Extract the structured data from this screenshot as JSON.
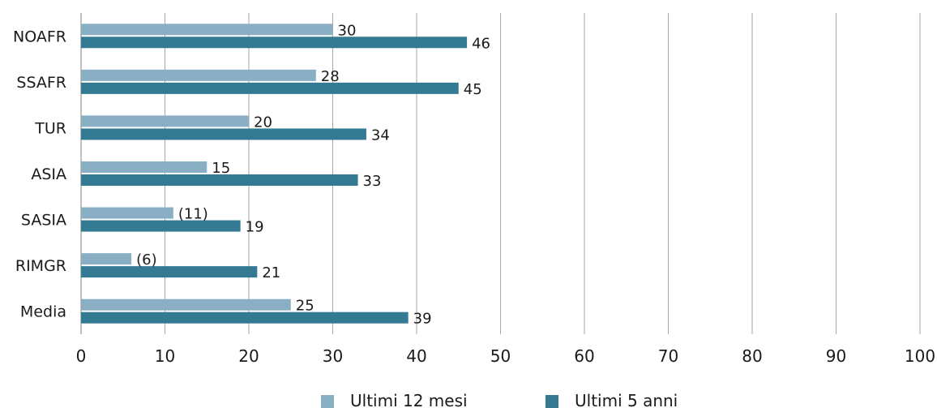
{
  "chart_data": {
    "type": "bar",
    "orientation": "horizontal",
    "categories": [
      "NOAFR",
      "SSAFR",
      "TUR",
      "ASIA",
      "SASIA",
      "RIMGR",
      "Media"
    ],
    "series": [
      {
        "name": "Ultimi 12 mesi",
        "color": "#8aafc4",
        "values": [
          30,
          28,
          20,
          15,
          11,
          6,
          25
        ],
        "labels": [
          "30",
          "28",
          "20",
          "15",
          "(11)",
          "(6)",
          "25"
        ]
      },
      {
        "name": "Ultimi 5 anni",
        "color": "#337a92",
        "values": [
          46,
          45,
          34,
          33,
          19,
          21,
          39
        ],
        "labels": [
          "46",
          "45",
          "34",
          "33",
          "19",
          "21",
          "39"
        ]
      }
    ],
    "xlim": [
      0,
      100
    ],
    "xticks": [
      0,
      10,
      20,
      30,
      40,
      50,
      60,
      70,
      80,
      90,
      100
    ],
    "grid": "vertical",
    "legend_position": "bottom"
  }
}
